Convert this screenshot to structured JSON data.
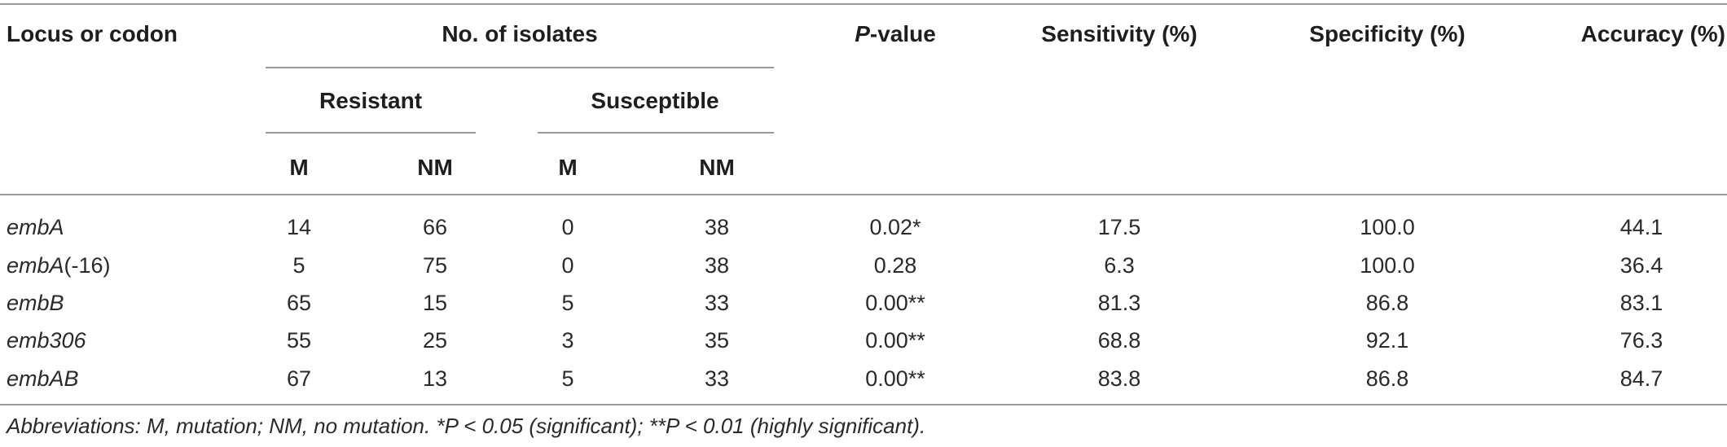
{
  "table": {
    "headers": {
      "locus": "Locus or codon",
      "isolates": "No. of isolates",
      "resistant": "Resistant",
      "susceptible": "Susceptible",
      "m1": "M",
      "nm1": "NM",
      "m2": "M",
      "nm2": "NM",
      "p_letter": "P",
      "p_suffix": "-value",
      "sensitivity": "Sensitivity (%)",
      "specificity": "Specificity (%)",
      "accuracy": "Accuracy (%)"
    },
    "rows": [
      {
        "locus_italic": "embA",
        "locus_suffix": "",
        "r_m": "14",
        "r_nm": "66",
        "s_m": "0",
        "s_nm": "38",
        "p": "0.02*",
        "sens": "17.5",
        "spec": "100.0",
        "acc": "44.1"
      },
      {
        "locus_italic": "embA",
        "locus_suffix": "(-16)",
        "r_m": "5",
        "r_nm": "75",
        "s_m": "0",
        "s_nm": "38",
        "p": "0.28",
        "sens": "6.3",
        "spec": "100.0",
        "acc": "36.4"
      },
      {
        "locus_italic": "embB",
        "locus_suffix": "",
        "r_m": "65",
        "r_nm": "15",
        "s_m": "5",
        "s_nm": "33",
        "p": "0.00**",
        "sens": "81.3",
        "spec": "86.8",
        "acc": "83.1"
      },
      {
        "locus_italic": "emb306",
        "locus_suffix": "",
        "r_m": "55",
        "r_nm": "25",
        "s_m": "3",
        "s_nm": "35",
        "p": "0.00**",
        "sens": "68.8",
        "spec": "92.1",
        "acc": "76.3"
      },
      {
        "locus_italic": "embAB",
        "locus_suffix": "",
        "r_m": "67",
        "r_nm": "13",
        "s_m": "5",
        "s_nm": "33",
        "p": "0.00**",
        "sens": "83.8",
        "spec": "86.8",
        "acc": "84.7"
      }
    ]
  },
  "footnote": "Abbreviations: M, mutation; NM, no mutation. *P < 0.05 (significant); **P < 0.01 (highly significant)."
}
